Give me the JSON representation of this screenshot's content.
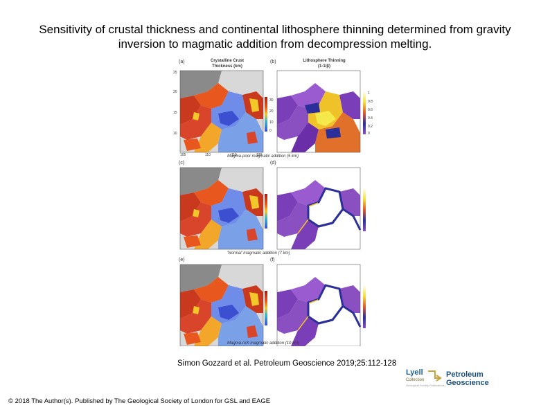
{
  "title": "Sensitivity of crustal thickness and continental lithosphere thinning determined from gravity inversion to magmatic addition from decompression melting.",
  "figure": {
    "panel_letters": [
      "(a)",
      "(b)",
      "(c)",
      "(d)",
      "(e)",
      "(f)"
    ],
    "col_titles": {
      "left_line1": "Crystalline Crust",
      "left_line2": "Thickness (km)",
      "right_line1": "Lithosphere Thinning",
      "right_line2": "(1-1/β)"
    },
    "row_captions": [
      "Magma-poor magmatic addition (5 km)",
      "'Normal' magmatic addition (7 km)",
      "Magma-rich magmatic addition (10 km)"
    ],
    "crust_scale_ticks": [
      "30",
      "20",
      "10",
      "0"
    ],
    "thinning_scale_ticks": [
      "1",
      "0.8",
      "0.6",
      "0.4",
      "0.2",
      "0"
    ],
    "lat_ticks": [
      "25",
      "20",
      "15",
      "10"
    ],
    "lon_ticks": [
      "105",
      "110",
      "115",
      "120"
    ],
    "colors": {
      "crust_thick": "#c8391e",
      "crust_mid": "#f2c72a",
      "crust_thin": "#5a7be0",
      "land": "#8a8a8a",
      "thin_high": "#ffffff",
      "thin_mid": "#f0e23a",
      "thin_low": "#6a2fa8"
    }
  },
  "citation": "Simon Gozzard et al. Petroleum Geoscience 2019;25:112-128",
  "logo": {
    "lyell": "Lyell",
    "collection": "Collection",
    "tagline": "Geological Society Publications",
    "journal": "Petroleum Geoscience"
  },
  "footer": "© 2018 The Author(s). Published by The Geological Society of London for GSL and EAGE"
}
